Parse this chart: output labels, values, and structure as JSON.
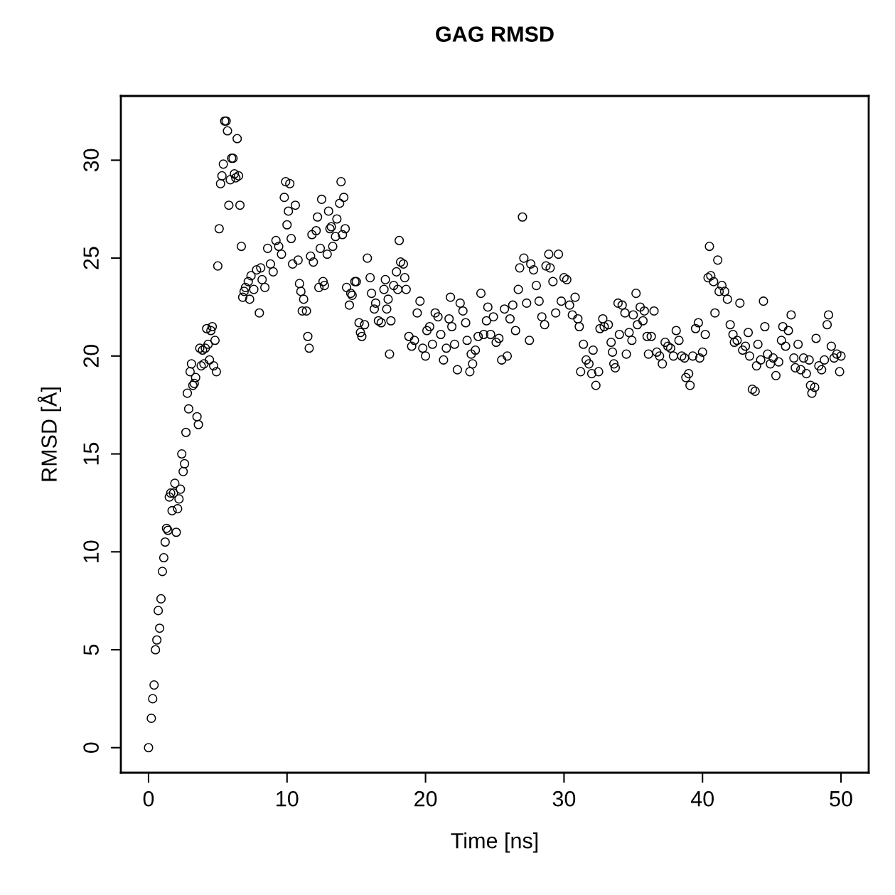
{
  "chart_data": {
    "type": "scatter",
    "title": "GAG RMSD",
    "xlabel": "Time [ns]",
    "ylabel": "RMSD [Å]",
    "xlim": [
      -2,
      52
    ],
    "ylim": [
      -1.28,
      33.28
    ],
    "xticks": [
      0,
      10,
      20,
      30,
      40,
      50
    ],
    "yticks": [
      0,
      5,
      10,
      15,
      20,
      25,
      30
    ],
    "grid": false,
    "marker": "circle",
    "series": [
      {
        "color": "#000000",
        "x": [
          0,
          0.2,
          0.3,
          0.4,
          0.5,
          0.6,
          0.7,
          0.8,
          0.9,
          1.0,
          1.1,
          1.2,
          1.3,
          1.4,
          1.5,
          1.6,
          1.7,
          1.8,
          1.9,
          2.0,
          2.1,
          2.2,
          2.3,
          2.4,
          2.5,
          2.6,
          2.7,
          2.8,
          2.9,
          3.0,
          3.1,
          3.2,
          3.3,
          3.4,
          3.5,
          3.6,
          3.7,
          3.8,
          3.9,
          4.0,
          4.1,
          4.2,
          4.3,
          4.4,
          4.5,
          4.6,
          4.7,
          4.8,
          4.9,
          5.0,
          5.1,
          5.2,
          5.3,
          5.4,
          5.5,
          5.6,
          5.7,
          5.8,
          5.9,
          6.0,
          6.1,
          6.2,
          6.3,
          6.4,
          6.5,
          6.6,
          6.7,
          6.8,
          6.9,
          7.0,
          7.2,
          7.3,
          7.4,
          7.6,
          7.8,
          8.0,
          8.1,
          8.2,
          8.4,
          8.6,
          8.8,
          9.0,
          9.2,
          9.4,
          9.6,
          9.8,
          9.9,
          10.0,
          10.1,
          10.2,
          10.3,
          10.4,
          10.6,
          10.8,
          10.9,
          11.0,
          11.1,
          11.2,
          11.4,
          11.5,
          11.6,
          11.7,
          11.8,
          11.9,
          12.1,
          12.2,
          12.3,
          12.4,
          12.5,
          12.6,
          12.7,
          12.9,
          13.0,
          13.1,
          13.2,
          13.3,
          13.5,
          13.6,
          13.8,
          13.9,
          14.0,
          14.1,
          14.2,
          14.3,
          14.5,
          14.6,
          14.7,
          14.9,
          15.0,
          15.2,
          15.3,
          15.4,
          15.6,
          15.8,
          16.0,
          16.1,
          16.3,
          16.4,
          16.6,
          16.8,
          17.0,
          17.1,
          17.2,
          17.3,
          17.4,
          17.5,
          17.7,
          17.9,
          18.0,
          18.1,
          18.2,
          18.4,
          18.5,
          18.6,
          18.8,
          19.0,
          19.2,
          19.4,
          19.6,
          19.8,
          20.0,
          20.1,
          20.3,
          20.5,
          20.7,
          20.9,
          21.1,
          21.3,
          21.5,
          21.7,
          21.8,
          21.9,
          22.1,
          22.3,
          22.5,
          22.7,
          22.9,
          23.0,
          23.2,
          23.3,
          23.4,
          23.6,
          23.8,
          24.0,
          24.2,
          24.4,
          24.5,
          24.7,
          24.9,
          25.1,
          25.3,
          25.5,
          25.7,
          25.9,
          26.1,
          26.3,
          26.5,
          26.7,
          26.8,
          27.0,
          27.1,
          27.3,
          27.5,
          27.6,
          27.8,
          28.0,
          28.2,
          28.4,
          28.6,
          28.7,
          28.9,
          29.0,
          29.2,
          29.4,
          29.6,
          29.8,
          30.0,
          30.2,
          30.4,
          30.6,
          30.8,
          31.0,
          31.1,
          31.2,
          31.4,
          31.6,
          31.8,
          32.0,
          32.1,
          32.3,
          32.5,
          32.6,
          32.8,
          32.9,
          33.2,
          33.4,
          33.5,
          33.6,
          33.7,
          33.9,
          34.0,
          34.2,
          34.4,
          34.5,
          34.7,
          34.9,
          35.0,
          35.2,
          35.3,
          35.5,
          35.7,
          35.8,
          36.0,
          36.1,
          36.3,
          36.5,
          36.7,
          36.9,
          37.1,
          37.3,
          37.5,
          37.7,
          37.9,
          38.1,
          38.3,
          38.5,
          38.7,
          38.8,
          39.0,
          39.1,
          39.3,
          39.5,
          39.7,
          39.8,
          40.0,
          40.2,
          40.4,
          40.5,
          40.6,
          40.8,
          40.9,
          41.1,
          41.2,
          41.4,
          41.6,
          41.8,
          42.0,
          42.2,
          42.3,
          42.5,
          42.7,
          42.9,
          43.1,
          43.3,
          43.4,
          43.6,
          43.8,
          43.9,
          44.0,
          44.2,
          44.4,
          44.5,
          44.7,
          44.9,
          45.1,
          45.3,
          45.5,
          45.7,
          45.8,
          46.0,
          46.2,
          46.4,
          46.6,
          46.7,
          46.9,
          47.1,
          47.3,
          47.5,
          47.7,
          47.8,
          47.9,
          48.1,
          48.2,
          48.4,
          48.6,
          48.8,
          49.0,
          49.1,
          49.3,
          49.5,
          49.7,
          49.9,
          50.0
        ],
        "values": [
          0,
          1.5,
          2.5,
          3.2,
          5.0,
          5.5,
          7.0,
          6.1,
          7.6,
          9.0,
          9.7,
          10.5,
          11.2,
          11.1,
          12.8,
          13.0,
          12.1,
          13.0,
          13.5,
          11.0,
          12.2,
          12.7,
          13.2,
          15.0,
          14.1,
          14.5,
          16.1,
          18.1,
          17.3,
          19.2,
          19.6,
          18.5,
          18.6,
          18.9,
          16.9,
          16.5,
          20.4,
          19.5,
          20.3,
          19.6,
          20.4,
          21.4,
          20.6,
          19.8,
          21.3,
          21.5,
          19.5,
          20.8,
          19.2,
          24.6,
          26.5,
          28.8,
          29.2,
          29.8,
          32.0,
          32.0,
          31.5,
          27.7,
          29.0,
          30.1,
          30.1,
          29.3,
          29.1,
          31.1,
          29.2,
          27.7,
          25.6,
          23.0,
          23.3,
          23.5,
          23.8,
          22.9,
          24.1,
          23.4,
          24.4,
          22.2,
          24.5,
          23.9,
          23.5,
          25.5,
          24.7,
          24.3,
          25.9,
          25.6,
          25.2,
          28.1,
          28.9,
          26.7,
          27.4,
          28.8,
          26.0,
          24.7,
          27.7,
          24.9,
          23.7,
          23.3,
          22.3,
          22.9,
          22.3,
          21.0,
          20.4,
          25.1,
          26.2,
          24.8,
          26.4,
          27.1,
          23.5,
          25.5,
          28.0,
          23.8,
          23.6,
          25.2,
          27.4,
          26.5,
          26.6,
          25.6,
          26.1,
          27.0,
          27.8,
          28.9,
          26.2,
          28.1,
          26.5,
          23.5,
          22.6,
          23.2,
          23.1,
          23.8,
          23.8,
          21.7,
          21.2,
          21.0,
          21.6,
          25.0,
          24.0,
          23.2,
          22.4,
          22.7,
          21.8,
          21.7,
          23.4,
          23.9,
          22.4,
          22.9,
          20.1,
          21.8,
          23.6,
          24.3,
          23.4,
          25.9,
          24.8,
          24.7,
          24.0,
          23.4,
          21.0,
          20.5,
          20.8,
          22.2,
          22.8,
          20.4,
          20.0,
          21.3,
          21.5,
          20.6,
          22.2,
          22.0,
          21.1,
          19.8,
          20.4,
          21.9,
          23.0,
          21.5,
          20.6,
          19.3,
          22.7,
          22.3,
          21.7,
          20.8,
          19.2,
          20.1,
          19.6,
          20.3,
          21.0,
          23.2,
          21.1,
          21.8,
          22.5,
          21.1,
          22.0,
          20.7,
          20.9,
          19.8,
          22.4,
          20.0,
          21.9,
          22.6,
          21.3,
          23.4,
          24.5,
          27.1,
          25.0,
          22.7,
          20.8,
          24.7,
          24.4,
          23.6,
          22.8,
          22.0,
          21.6,
          24.6,
          25.2,
          24.5,
          23.8,
          22.2,
          25.2,
          22.8,
          24.0,
          23.9,
          22.6,
          22.1,
          23.0,
          21.9,
          21.5,
          19.2,
          20.6,
          19.8,
          19.6,
          19.1,
          20.3,
          18.5,
          19.2,
          21.4,
          21.9,
          21.5,
          21.6,
          20.7,
          20.2,
          19.6,
          19.4,
          22.7,
          21.1,
          22.6,
          22.2,
          20.1,
          21.2,
          20.8,
          22.1,
          23.2,
          21.6,
          22.5,
          21.8,
          22.3,
          21.0,
          20.1,
          21.0,
          22.3,
          20.2,
          20.0,
          19.6,
          20.7,
          20.5,
          20.4,
          20.0,
          21.3,
          20.8,
          20.0,
          19.9,
          18.9,
          19.1,
          18.5,
          20.0,
          21.4,
          21.7,
          19.9,
          20.2,
          21.1,
          24.0,
          25.6,
          24.1,
          23.8,
          22.2,
          24.9,
          23.3,
          23.6,
          23.3,
          22.9,
          21.6,
          21.1,
          20.7,
          20.8,
          22.7,
          20.3,
          20.5,
          21.2,
          20.0,
          18.3,
          18.2,
          19.5,
          20.6,
          19.8,
          22.8,
          21.5,
          20.1,
          19.6,
          19.9,
          19.0,
          19.7,
          20.8,
          21.5,
          20.5,
          21.3,
          22.1,
          19.9,
          19.4,
          20.6,
          19.3,
          19.9,
          19.1,
          19.8,
          18.5,
          18.1,
          18.4,
          20.9,
          19.5,
          19.3,
          19.8,
          21.6,
          22.1,
          20.5,
          19.9,
          20.1,
          19.2,
          20.0
        ]
      }
    ]
  }
}
